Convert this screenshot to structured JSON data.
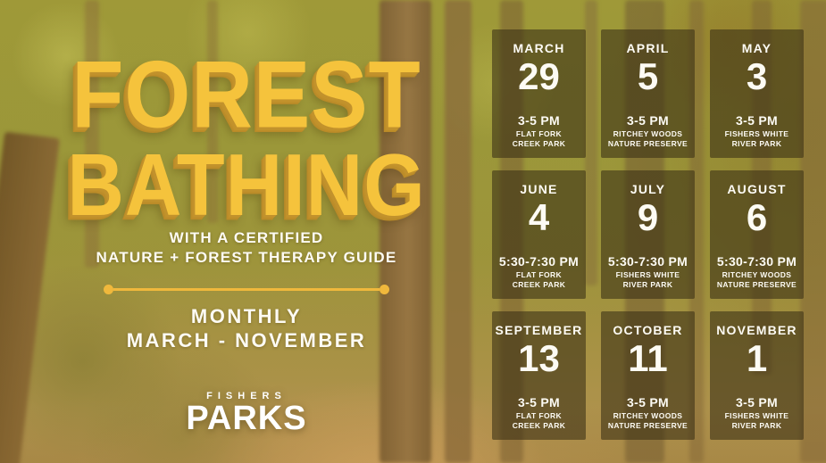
{
  "poster": {
    "title_line1": "FOREST",
    "title_line2": "BATHING",
    "subtitle_line1": "WITH A CERTIFIED",
    "subtitle_line2": "NATURE + FOREST THERAPY GUIDE",
    "frequency_line1": "MONTHLY",
    "frequency_line2": "MARCH - NOVEMBER",
    "logo_top": "FISHERS",
    "logo_bottom": "PARKS"
  },
  "colors": {
    "title_yellow": "#F5C33C",
    "title_shadow": "#C2922C",
    "divider_yellow": "#F0B83C",
    "card_background": "rgba(56,46,20,0.58)",
    "text_white": "#FFFFFF"
  },
  "events": [
    {
      "month": "MARCH",
      "date": "29",
      "time": "3-5 PM",
      "location_line1": "FLAT FORK",
      "location_line2": "CREEK PARK"
    },
    {
      "month": "APRIL",
      "date": "5",
      "time": "3-5 PM",
      "location_line1": "RITCHEY WOODS",
      "location_line2": "NATURE PRESERVE"
    },
    {
      "month": "MAY",
      "date": "3",
      "time": "3-5 PM",
      "location_line1": "FISHERS WHITE",
      "location_line2": "RIVER PARK"
    },
    {
      "month": "JUNE",
      "date": "4",
      "time": "5:30-7:30 PM",
      "location_line1": "FLAT FORK",
      "location_line2": "CREEK PARK"
    },
    {
      "month": "JULY",
      "date": "9",
      "time": "5:30-7:30 PM",
      "location_line1": "FISHERS WHITE",
      "location_line2": "RIVER PARK"
    },
    {
      "month": "AUGUST",
      "date": "6",
      "time": "5:30-7:30 PM",
      "location_line1": "RITCHEY WOODS",
      "location_line2": "NATURE PRESERVE"
    },
    {
      "month": "SEPTEMBER",
      "date": "13",
      "time": "3-5 PM",
      "location_line1": "FLAT FORK",
      "location_line2": "CREEK PARK"
    },
    {
      "month": "OCTOBER",
      "date": "11",
      "time": "3-5 PM",
      "location_line1": "RITCHEY WOODS",
      "location_line2": "NATURE PRESERVE"
    },
    {
      "month": "NOVEMBER",
      "date": "1",
      "time": "3-5 PM",
      "location_line1": "FISHERS WHITE",
      "location_line2": "RIVER PARK"
    }
  ]
}
